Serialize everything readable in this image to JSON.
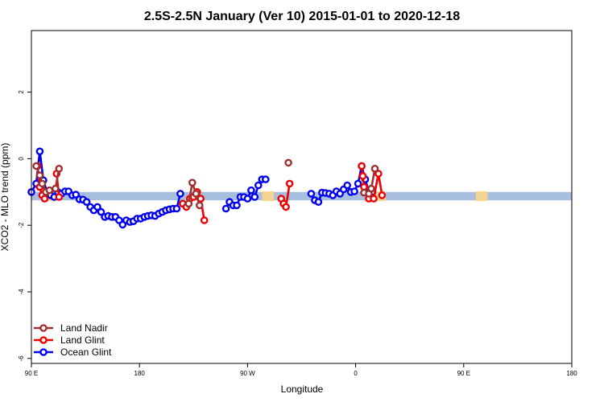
{
  "chart_data": {
    "type": "line",
    "title": "2.5S-2.5N January (Ver 10)   2015-01-01 to 2020-12-18",
    "xlabel": "Longitude",
    "ylabel": "XCO2 - MLO trend (ppm)",
    "xlim": [
      90,
      540
    ],
    "ylim": [
      -6.15,
      3.85
    ],
    "x_ticks": [
      {
        "value": 90,
        "label": "90 E"
      },
      {
        "value": 180,
        "label": "180"
      },
      {
        "value": 270,
        "label": "90 W"
      },
      {
        "value": 360,
        "label": "0"
      },
      {
        "value": 450,
        "label": "90 E"
      },
      {
        "value": 540,
        "label": "180"
      }
    ],
    "y_ticks": [
      {
        "value": 2,
        "label": "2"
      },
      {
        "value": 0,
        "label": "0"
      },
      {
        "value": -2,
        "label": "-2"
      },
      {
        "value": -4,
        "label": "-4"
      },
      {
        "value": -6,
        "label": "-6"
      }
    ],
    "grid": false,
    "legend_position": "bottom-left",
    "band": {
      "y_low": -1.25,
      "y_high": -1.0,
      "color": "#a7bedf"
    },
    "land_shading": [
      {
        "x0": 100,
        "x1": 110,
        "color": "#fbd58a"
      },
      {
        "x0": 282,
        "x1": 292,
        "color": "#fbd58a"
      },
      {
        "x0": 371,
        "x1": 385,
        "color": "#fbd58a"
      },
      {
        "x0": 460,
        "x1": 470,
        "color": "#fbd58a"
      }
    ],
    "series": [
      {
        "name": "Ocean Glint",
        "color": "#0000ee",
        "segments": [
          [
            [
              90,
              -1.0
            ],
            [
              94,
              -0.75
            ],
            [
              97,
              0.22
            ],
            [
              100,
              -0.65
            ],
            [
              103,
              -1.0
            ],
            [
              106,
              -1.1
            ],
            [
              109,
              -1.15
            ],
            [
              112,
              -1.0
            ],
            [
              115,
              -1.05
            ],
            [
              118,
              -0.98
            ],
            [
              121,
              -0.98
            ],
            [
              124,
              -1.1
            ],
            [
              127,
              -1.08
            ],
            [
              130,
              -1.22
            ],
            [
              133,
              -1.23
            ],
            [
              136,
              -1.3
            ],
            [
              139,
              -1.45
            ],
            [
              142,
              -1.55
            ],
            [
              145,
              -1.45
            ],
            [
              148,
              -1.6
            ],
            [
              151,
              -1.75
            ],
            [
              154,
              -1.72
            ],
            [
              157,
              -1.75
            ],
            [
              160,
              -1.75
            ],
            [
              163,
              -1.85
            ],
            [
              166,
              -1.98
            ],
            [
              169,
              -1.85
            ],
            [
              172,
              -1.9
            ],
            [
              175,
              -1.88
            ],
            [
              178,
              -1.8
            ],
            [
              181,
              -1.8
            ],
            [
              184,
              -1.75
            ],
            [
              187,
              -1.72
            ],
            [
              190,
              -1.7
            ],
            [
              193,
              -1.72
            ],
            [
              196,
              -1.65
            ],
            [
              199,
              -1.6
            ],
            [
              202,
              -1.55
            ],
            [
              205,
              -1.52
            ],
            [
              208,
              -1.5
            ],
            [
              211,
              -1.5
            ],
            [
              214,
              -1.05
            ]
          ],
          [
            [
              252,
              -1.5
            ],
            [
              255,
              -1.3
            ],
            [
              258,
              -1.4
            ],
            [
              261,
              -1.4
            ],
            [
              264,
              -1.15
            ],
            [
              267,
              -1.15
            ],
            [
              270,
              -1.2
            ],
            [
              273,
              -0.95
            ],
            [
              276,
              -1.15
            ],
            [
              279,
              -0.8
            ],
            [
              282,
              -0.62
            ],
            [
              285,
              -0.62
            ]
          ],
          [
            [
              323,
              -1.05
            ],
            [
              326,
              -1.25
            ],
            [
              329,
              -1.3
            ],
            [
              332,
              -1.02
            ],
            [
              335,
              -1.03
            ],
            [
              338,
              -1.05
            ],
            [
              341,
              -1.1
            ],
            [
              344,
              -0.98
            ],
            [
              347,
              -1.05
            ],
            [
              350,
              -0.92
            ],
            [
              353,
              -0.8
            ],
            [
              356,
              -1.0
            ],
            [
              359,
              -0.98
            ],
            [
              362,
              -0.75
            ],
            [
              365,
              -0.22
            ],
            [
              368,
              -0.62
            ],
            [
              371,
              -1.0
            ],
            [
              374,
              -1.0
            ]
          ]
        ]
      },
      {
        "name": "Land Glint",
        "color": "#ee0000",
        "segments": [
          [
            [
              95,
              -0.22
            ],
            [
              97,
              -0.85
            ],
            [
              99,
              -1.1
            ],
            [
              101,
              -1.2
            ]
          ],
          [
            [
              111,
              -0.45
            ],
            [
              113,
              -1.15
            ]
          ],
          [
            [
              216,
              -1.35
            ],
            [
              219,
              -1.45
            ],
            [
              222,
              -1.2
            ],
            [
              225,
              -1.15
            ],
            [
              228,
              -1.0
            ],
            [
              231,
              -1.2
            ],
            [
              234,
              -1.85
            ]
          ],
          [
            [
              298,
              -1.2
            ],
            [
              300,
              -1.35
            ],
            [
              302,
              -1.45
            ],
            [
              305,
              -0.75
            ]
          ],
          [
            [
              365,
              -0.22
            ],
            [
              366,
              -0.52
            ],
            [
              367,
              -0.85
            ]
          ],
          [
            [
              371,
              -1.2
            ],
            [
              375,
              -1.2
            ],
            [
              379,
              -0.45
            ],
            [
              382,
              -1.1
            ]
          ]
        ]
      },
      {
        "name": "Land Nadir",
        "color": "#a03030",
        "segments": [
          [
            [
              94,
              -0.22
            ],
            [
              97,
              -0.5
            ],
            [
              99,
              -0.75
            ],
            [
              102,
              -1.0
            ],
            [
              105,
              -0.95
            ]
          ],
          [
            [
              110,
              -0.9
            ],
            [
              113,
              -0.3
            ]
          ],
          [
            [
              221,
              -1.35
            ],
            [
              224,
              -0.72
            ],
            [
              227,
              -1.05
            ],
            [
              230,
              -1.4
            ]
          ],
          [
            [
              304,
              -0.12
            ]
          ],
          [
            [
              367,
              -1.02
            ],
            [
              371,
              -1.05
            ],
            [
              373,
              -0.9
            ],
            [
              376,
              -0.3
            ]
          ]
        ]
      }
    ],
    "legend": [
      {
        "label": "Land Nadir",
        "color": "#a03030"
      },
      {
        "label": "Land Glint",
        "color": "#ee0000"
      },
      {
        "label": "Ocean Glint",
        "color": "#0000ee"
      }
    ]
  }
}
